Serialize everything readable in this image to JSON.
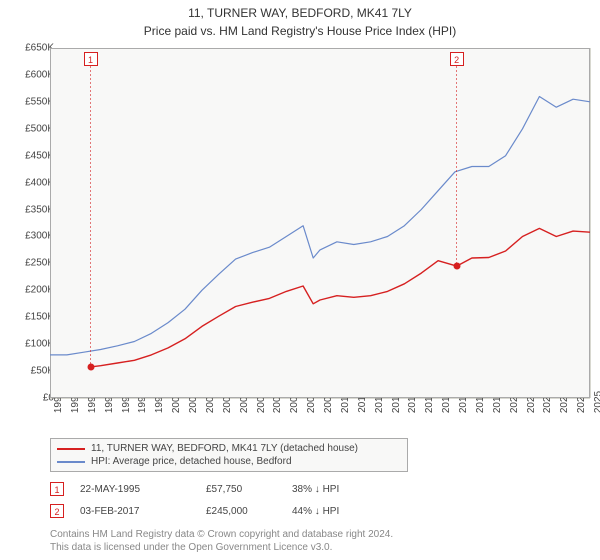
{
  "title": "11, TURNER WAY, BEDFORD, MK41 7LY",
  "subtitle": "Price paid vs. HM Land Registry's House Price Index (HPI)",
  "chart": {
    "type": "line",
    "background_color": "#f8f8f7",
    "grid_color": "#d8d8d0",
    "border_color": "#aaaaaa",
    "ylim": [
      0,
      650000
    ],
    "ytick_step": 50000,
    "y_ticks": [
      "£0",
      "£50K",
      "£100K",
      "£150K",
      "£200K",
      "£250K",
      "£300K",
      "£350K",
      "£400K",
      "£450K",
      "£500K",
      "£550K",
      "£600K",
      "£650K"
    ],
    "x_years": [
      1993,
      1994,
      1995,
      1996,
      1997,
      1998,
      1999,
      2000,
      2001,
      2002,
      2003,
      2004,
      2005,
      2006,
      2007,
      2008,
      2009,
      2010,
      2011,
      2012,
      2013,
      2014,
      2015,
      2016,
      2017,
      2018,
      2019,
      2020,
      2021,
      2022,
      2023,
      2024,
      2025
    ],
    "series": {
      "hpi": {
        "label": "HPI: Average price, detached house, Bedford",
        "color": "#6a8acb",
        "line_width": 1.2,
        "data": [
          [
            1993,
            80000
          ],
          [
            1994,
            80000
          ],
          [
            1995,
            85000
          ],
          [
            1996,
            90000
          ],
          [
            1997,
            97000
          ],
          [
            1998,
            105000
          ],
          [
            1999,
            120000
          ],
          [
            2000,
            140000
          ],
          [
            2001,
            165000
          ],
          [
            2002,
            200000
          ],
          [
            2003,
            230000
          ],
          [
            2004,
            258000
          ],
          [
            2005,
            270000
          ],
          [
            2006,
            280000
          ],
          [
            2007,
            300000
          ],
          [
            2008,
            320000
          ],
          [
            2008.6,
            260000
          ],
          [
            2009,
            275000
          ],
          [
            2010,
            290000
          ],
          [
            2011,
            285000
          ],
          [
            2012,
            290000
          ],
          [
            2013,
            300000
          ],
          [
            2014,
            320000
          ],
          [
            2015,
            350000
          ],
          [
            2016,
            385000
          ],
          [
            2017,
            420000
          ],
          [
            2018,
            430000
          ],
          [
            2019,
            430000
          ],
          [
            2020,
            450000
          ],
          [
            2021,
            500000
          ],
          [
            2022,
            560000
          ],
          [
            2023,
            540000
          ],
          [
            2024,
            555000
          ],
          [
            2025,
            550000
          ]
        ]
      },
      "price_paid": {
        "label": "11, TURNER WAY, BEDFORD, MK41 7LY (detached house)",
        "color": "#d62020",
        "line_width": 1.4,
        "data": [
          [
            1995.4,
            57750
          ],
          [
            1996,
            60000
          ],
          [
            1997,
            65000
          ],
          [
            1998,
            70000
          ],
          [
            1999,
            80000
          ],
          [
            2000,
            93000
          ],
          [
            2001,
            110000
          ],
          [
            2002,
            133000
          ],
          [
            2003,
            152000
          ],
          [
            2004,
            170000
          ],
          [
            2005,
            178000
          ],
          [
            2006,
            185000
          ],
          [
            2007,
            198000
          ],
          [
            2008,
            208000
          ],
          [
            2008.6,
            175000
          ],
          [
            2009,
            182000
          ],
          [
            2010,
            190000
          ],
          [
            2011,
            187000
          ],
          [
            2012,
            190000
          ],
          [
            2013,
            198000
          ],
          [
            2014,
            212000
          ],
          [
            2015,
            232000
          ],
          [
            2016,
            255000
          ],
          [
            2017.1,
            245000
          ],
          [
            2018,
            260000
          ],
          [
            2019,
            261000
          ],
          [
            2020,
            273000
          ],
          [
            2021,
            300000
          ],
          [
            2022,
            315000
          ],
          [
            2023,
            300000
          ],
          [
            2024,
            310000
          ],
          [
            2025,
            308000
          ]
        ]
      }
    },
    "markers": [
      {
        "n": "1",
        "year": 1995.4,
        "price": 57750,
        "color": "#d62020",
        "label_top": true
      },
      {
        "n": "2",
        "year": 2017.1,
        "price": 245000,
        "color": "#d62020",
        "label_top": true
      }
    ]
  },
  "legend": {
    "items": [
      {
        "color": "#d62020",
        "label": "11, TURNER WAY, BEDFORD, MK41 7LY (detached house)"
      },
      {
        "color": "#6a8acb",
        "label": "HPI: Average price, detached house, Bedford"
      }
    ]
  },
  "sales": [
    {
      "n": "1",
      "color": "#d62020",
      "date": "22-MAY-1995",
      "price": "£57,750",
      "diff": "38% ↓ HPI"
    },
    {
      "n": "2",
      "color": "#d62020",
      "date": "03-FEB-2017",
      "price": "£245,000",
      "diff": "44% ↓ HPI"
    }
  ],
  "license_line1": "Contains HM Land Registry data © Crown copyright and database right 2024.",
  "license_line2": "This data is licensed under the Open Government Licence v3.0."
}
